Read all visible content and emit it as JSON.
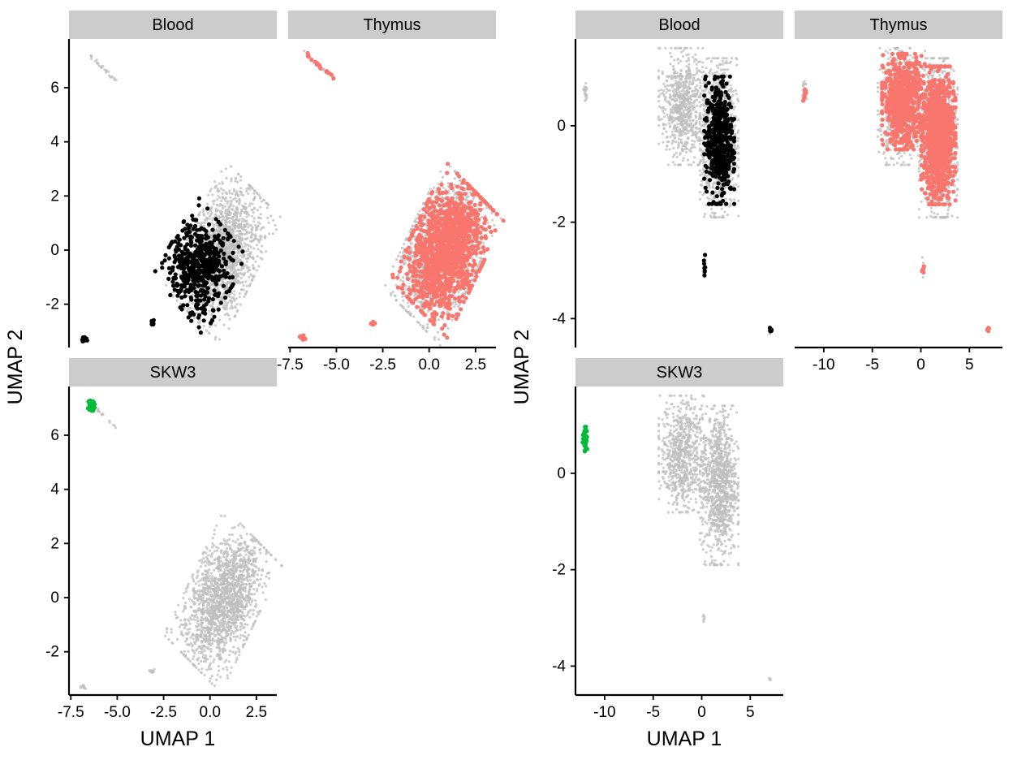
{
  "figure": {
    "colors": {
      "background": "#ffffff",
      "strip": "#cccccc",
      "reference": "#bebebe",
      "Blood": "#000000",
      "Thymus": "#f8766d",
      "SKW3": "#00ba38"
    }
  },
  "chart_data": [
    {
      "type": "scatter",
      "layout": "facets",
      "xlabel": "UMAP 1",
      "ylabel": "UMAP 2",
      "xlim": [
        -7.6,
        3.6
      ],
      "ylim": [
        -3.6,
        7.8
      ],
      "xticks": [
        "-7.5",
        "-5.0",
        "-2.5",
        "0.0",
        "2.5"
      ],
      "xtick_values": [
        -7.5,
        -5.0,
        -2.5,
        0.0,
        2.5
      ],
      "yticks": [
        "-2",
        "0",
        "2",
        "4",
        "6"
      ],
      "ytick_values": [
        -2,
        0,
        2,
        4,
        6
      ],
      "facets": [
        "Blood",
        "Thymus",
        "SKW3"
      ],
      "background_clusters": [
        {
          "shape": "ellipse",
          "cx": 0.7,
          "cy": -0.1,
          "sx": 1.3,
          "sy": 0.85,
          "angle_deg": 55,
          "n": 1700
        },
        {
          "shape": "streak",
          "x0": -6.7,
          "y0": 7.3,
          "x1": -5.1,
          "y1": 6.3,
          "n": 26
        },
        {
          "shape": "blob",
          "cx": -3.1,
          "cy": -2.7,
          "sx": 0.08,
          "sy": 0.05,
          "n": 9
        },
        {
          "shape": "blob",
          "cx": -6.8,
          "cy": -3.3,
          "sx": 0.08,
          "sy": 0.05,
          "n": 12
        }
      ],
      "highlights": {
        "Blood": [
          {
            "shape": "ellipse",
            "cx": -0.5,
            "cy": -0.6,
            "sx": 0.85,
            "sy": 0.8,
            "angle_deg": 50,
            "n": 520
          },
          {
            "shape": "blob",
            "cx": -3.1,
            "cy": -2.7,
            "sx": 0.08,
            "sy": 0.05,
            "n": 8
          },
          {
            "shape": "blob",
            "cx": -6.8,
            "cy": -3.3,
            "sx": 0.08,
            "sy": 0.05,
            "n": 14
          }
        ],
        "Thymus": [
          {
            "shape": "ellipse",
            "cx": 0.95,
            "cy": 0.0,
            "sx": 1.2,
            "sy": 0.85,
            "angle_deg": 55,
            "n": 1300
          },
          {
            "shape": "streak",
            "x0": -6.7,
            "y0": 7.3,
            "x1": -5.1,
            "y1": 6.3,
            "n": 18
          },
          {
            "shape": "blob",
            "cx": -3.0,
            "cy": -2.7,
            "sx": 0.1,
            "sy": 0.05,
            "n": 8
          },
          {
            "shape": "blob",
            "cx": -6.8,
            "cy": -3.2,
            "sx": 0.08,
            "sy": 0.06,
            "n": 8
          }
        ],
        "SKW3": [
          {
            "shape": "blob",
            "cx": -6.4,
            "cy": 7.15,
            "sx": 0.08,
            "sy": 0.12,
            "n": 40
          }
        ]
      }
    },
    {
      "type": "scatter",
      "layout": "facets",
      "xlabel": "UMAP 1",
      "ylabel": "UMAP 2",
      "xlim": [
        -13,
        8.4
      ],
      "ylim": [
        -4.6,
        1.8
      ],
      "xticks": [
        "-10",
        "-5",
        "0",
        "5"
      ],
      "xtick_values": [
        -10,
        -5,
        0,
        5
      ],
      "yticks": [
        "-4",
        "-2",
        "0"
      ],
      "ytick_values": [
        -4,
        -2,
        0
      ],
      "facets": [
        "Blood",
        "Thymus",
        "SKW3"
      ],
      "background_clusters": [
        {
          "shape": "ellipse",
          "cx": -2.0,
          "cy": 0.4,
          "sx": 1.1,
          "sy": 0.55,
          "angle_deg": 0,
          "n": 700
        },
        {
          "shape": "ellipse",
          "cx": 1.8,
          "cy": -0.25,
          "sx": 0.9,
          "sy": 0.75,
          "angle_deg": 0,
          "n": 1000
        },
        {
          "shape": "blob",
          "cx": -12.0,
          "cy": 0.7,
          "sx": 0.12,
          "sy": 0.12,
          "n": 20
        },
        {
          "shape": "blob",
          "cx": 0.2,
          "cy": -2.95,
          "sx": 0.06,
          "sy": 0.1,
          "n": 6
        },
        {
          "shape": "blob",
          "cx": 7.0,
          "cy": -4.25,
          "sx": 0.06,
          "sy": 0.04,
          "n": 6
        }
      ],
      "highlights": {
        "Blood": [
          {
            "shape": "ellipse",
            "cx": 1.8,
            "cy": -0.3,
            "sx": 0.7,
            "sy": 0.6,
            "angle_deg": 0,
            "n": 480
          },
          {
            "shape": "blob",
            "cx": 0.3,
            "cy": -2.9,
            "sx": 0.06,
            "sy": 0.1,
            "n": 8
          },
          {
            "shape": "blob",
            "cx": 7.1,
            "cy": -4.25,
            "sx": 0.06,
            "sy": 0.04,
            "n": 8
          }
        ],
        "Thymus": [
          {
            "shape": "ellipse",
            "cx": -1.8,
            "cy": 0.5,
            "sx": 1.0,
            "sy": 0.45,
            "angle_deg": 0,
            "n": 700
          },
          {
            "shape": "ellipse",
            "cx": 1.8,
            "cy": -0.2,
            "sx": 0.8,
            "sy": 0.65,
            "angle_deg": 0,
            "n": 1000
          },
          {
            "shape": "blob",
            "cx": -12.0,
            "cy": 0.65,
            "sx": 0.08,
            "sy": 0.08,
            "n": 8
          },
          {
            "shape": "blob",
            "cx": 0.2,
            "cy": -3.0,
            "sx": 0.08,
            "sy": 0.05,
            "n": 8
          },
          {
            "shape": "blob",
            "cx": 6.9,
            "cy": -4.25,
            "sx": 0.06,
            "sy": 0.04,
            "n": 6
          }
        ],
        "SKW3": [
          {
            "shape": "blob",
            "cx": -12.0,
            "cy": 0.7,
            "sx": 0.12,
            "sy": 0.12,
            "n": 35
          }
        ]
      }
    }
  ]
}
